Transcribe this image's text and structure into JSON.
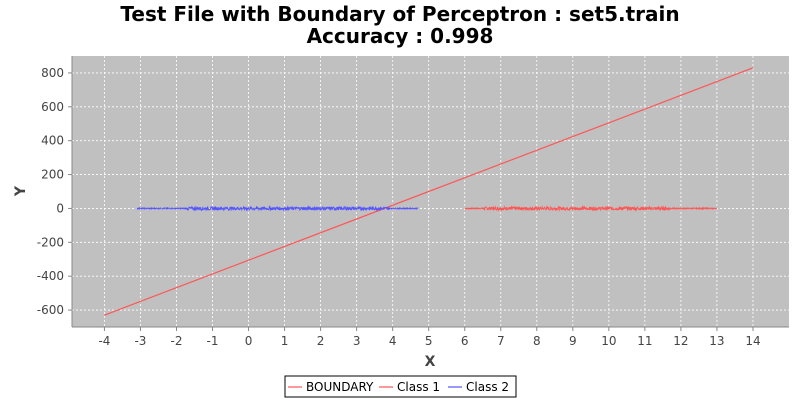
{
  "chart_data": {
    "type": "line",
    "title": "Test File with Boundary of Perceptron : set5.train",
    "subtitle": "Accuracy : 0.998",
    "xlabel": "X",
    "ylabel": "Y",
    "xlim": [
      -4.9,
      15.0
    ],
    "ylim": [
      -700,
      900
    ],
    "x_ticks": [
      -4,
      -3,
      -2,
      -1,
      0,
      1,
      2,
      3,
      4,
      5,
      6,
      7,
      8,
      9,
      10,
      11,
      12,
      13,
      14
    ],
    "y_ticks": [
      -600,
      -400,
      -200,
      0,
      200,
      400,
      600,
      800
    ],
    "grid": true,
    "legend_position": "bottom-center",
    "series": [
      {
        "name": "BOUNDARY",
        "color": "#ff5555",
        "x": [
          -4,
          14
        ],
        "y": [
          -630,
          830
        ]
      },
      {
        "name": "Class 1",
        "color": "#ff5555",
        "x_range": [
          6.0,
          13.0
        ],
        "dense_x_range": [
          6.5,
          11.7
        ],
        "y_center": 0,
        "noise_amplitude": 10
      },
      {
        "name": "Class 2",
        "color": "#5555ff",
        "x_range": [
          -3.1,
          4.7
        ],
        "dense_x_range": [
          -1.7,
          3.9
        ],
        "y_center": 0,
        "noise_amplitude": 10
      }
    ]
  },
  "colors": {
    "plot_background": "#c0c0c0",
    "grid": "#ffffff",
    "class1": "#ff5555",
    "class2": "#5555ff",
    "boundary": "#ff5555"
  }
}
